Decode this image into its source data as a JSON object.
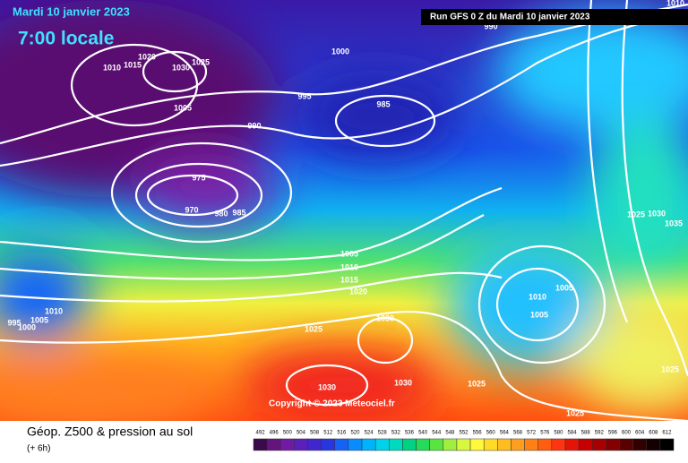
{
  "header": {
    "date": "Mardi 10 janvier 2023",
    "time": "7:00 locale",
    "run": "Run GFS 0 Z du Mardi 10 janvier 2023"
  },
  "copyright": "Copyright © 2023 Meteociel.fr",
  "footer": {
    "title": "Géop. Z500 & pression au sol",
    "lead": "(+ 6h)"
  },
  "isobar_labels": [
    "1010",
    "1015",
    "1020",
    "1030",
    "1025",
    "1000",
    "990",
    "995",
    "985",
    "1005",
    "990",
    "975",
    "970",
    "980",
    "985",
    "1005",
    "1010",
    "1015",
    "1020",
    "1030",
    "1025",
    "1030",
    "1030",
    "1025",
    "1025",
    "1025",
    "1010",
    "1005",
    "1005",
    "1010",
    "1005",
    "1000",
    "995",
    "1010",
    "1025",
    "1030",
    "1035"
  ],
  "legend": [
    492,
    496,
    500,
    504,
    508,
    512,
    516,
    520,
    524,
    528,
    532,
    536,
    540,
    544,
    548,
    552,
    556,
    560,
    564,
    568,
    572,
    576,
    580,
    584,
    588,
    592,
    596,
    600,
    604,
    608,
    612
  ]
}
